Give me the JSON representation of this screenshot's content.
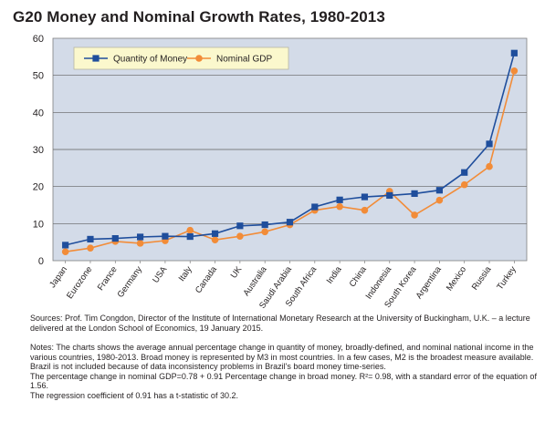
{
  "title": "G20 Money and Nominal Growth Rates, 1980-2013",
  "chart_data": {
    "type": "line",
    "title": "G20 Money and Nominal Growth Rates, 1980-2013",
    "xlabel": "",
    "ylabel": "",
    "ylim": [
      0,
      60
    ],
    "yticks": [
      0,
      10,
      20,
      30,
      40,
      50,
      60
    ],
    "grid": true,
    "legend_position": "top-left",
    "categories": [
      "Japan",
      "Eurozone",
      "France",
      "Germany",
      "USA",
      "Italy",
      "Canada",
      "UK",
      "Australia",
      "Saudi Arabia",
      "South Africa",
      "India",
      "China",
      "Indonesia",
      "South Korea",
      "Argentina",
      "Mexico",
      "Russia",
      "Turkey"
    ],
    "series": [
      {
        "name": "Quantity of Money",
        "color": "#1f4e9c",
        "marker": "square",
        "values": [
          4.2,
          5.8,
          6.0,
          6.4,
          6.6,
          6.5,
          7.3,
          9.4,
          9.7,
          10.4,
          14.5,
          16.4,
          17.2,
          17.6,
          18.1,
          19.0,
          23.8,
          31.5,
          56.0
        ]
      },
      {
        "name": "Nominal GDP",
        "color": "#f28c38",
        "marker": "circle",
        "values": [
          2.4,
          3.4,
          5.2,
          4.7,
          5.4,
          8.2,
          5.6,
          6.6,
          7.8,
          9.7,
          13.6,
          14.6,
          13.6,
          18.7,
          12.3,
          16.3,
          20.5,
          25.4,
          51.2
        ]
      }
    ]
  },
  "sources": "Sources: Prof. Tim Congdon, Director of the Institute of International Monetary Research at the University of Buckingham, U.K. – a lecture delivered at the London School of Economics, 19 January 2015.",
  "notes": [
    "Notes: The charts shows the average annual percentage change in quantity of money, broadly-defined, and nominal national income in the various countries, 1980-2013. Broad money is represented by M3 in most countries. In a few cases, M2 is the broadest measure available. Brazil is not included because of data inconsistency problems in Brazil's board money time-series.",
    "The percentage change in nominal GDP=0.78 + 0.91 Percentage change in broad money. R²= 0.98, with a standard error of the equation of 1.56.",
    "The regression coefficient of 0.91 has a t-statistic of 30.2."
  ],
  "colors": {
    "plot_background": "#d3dbe8",
    "legend_background": "#fbf8cd",
    "gridline": "#606060"
  }
}
